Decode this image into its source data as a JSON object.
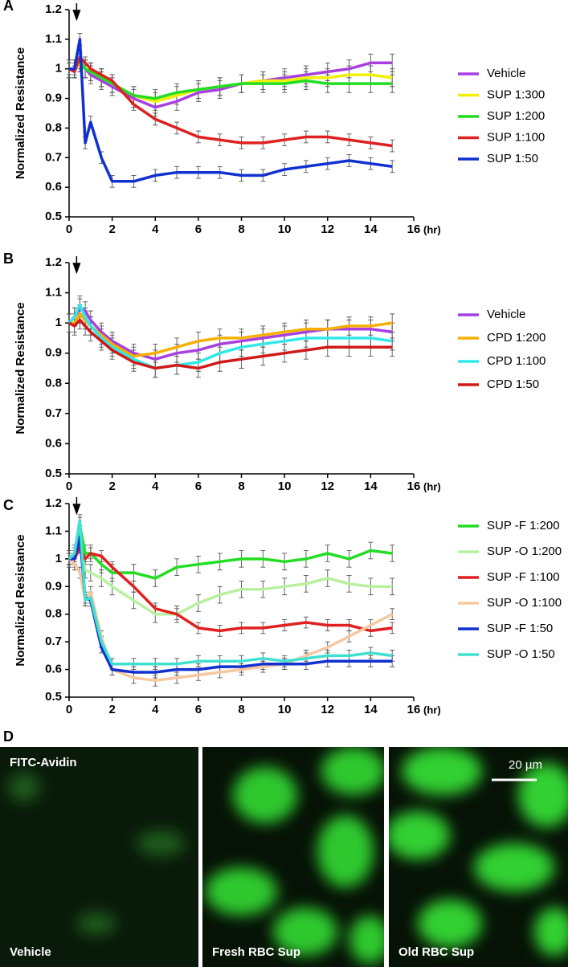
{
  "chart_data": [
    {
      "type": "line",
      "panel": "A",
      "y_label": "Normalized Resistance",
      "x_unit": "(hr)",
      "marker_x": 0.35,
      "x": [
        0,
        0.25,
        0.5,
        0.75,
        1,
        1.5,
        2,
        3,
        4,
        5,
        6,
        7,
        8,
        9,
        10,
        11,
        12,
        13,
        14,
        15
      ],
      "xlim": [
        0,
        16
      ],
      "xticks": [
        0,
        2,
        4,
        6,
        8,
        10,
        12,
        14,
        16
      ],
      "ylim": [
        0.5,
        1.2
      ],
      "yticks": [
        0.5,
        0.6,
        0.7,
        0.8,
        0.9,
        1,
        1.1,
        1.2
      ],
      "series": [
        {
          "name": "Vehicle",
          "color": "#a640e0",
          "error": 0.03,
          "values": [
            1.0,
            1.0,
            1.02,
            1.0,
            0.98,
            0.96,
            0.94,
            0.9,
            0.87,
            0.89,
            0.92,
            0.93,
            0.95,
            0.96,
            0.97,
            0.98,
            0.99,
            1.0,
            1.02,
            1.02
          ]
        },
        {
          "name": "SUP 1:300",
          "color": "#f0f000",
          "error": 0.03,
          "values": [
            1.0,
            1.0,
            1.02,
            1.0,
            0.99,
            0.97,
            0.95,
            0.91,
            0.89,
            0.91,
            0.93,
            0.94,
            0.95,
            0.96,
            0.96,
            0.97,
            0.97,
            0.98,
            0.98,
            0.97
          ]
        },
        {
          "name": "SUP 1:200",
          "color": "#22dd22",
          "error": 0.03,
          "values": [
            1.0,
            1.0,
            1.03,
            1.0,
            0.99,
            0.97,
            0.95,
            0.91,
            0.9,
            0.92,
            0.93,
            0.94,
            0.95,
            0.95,
            0.95,
            0.96,
            0.95,
            0.95,
            0.95,
            0.95
          ]
        },
        {
          "name": "SUP 1:100",
          "color": "#e02020",
          "error": 0.02,
          "values": [
            1.0,
            0.99,
            1.04,
            1.02,
            1.0,
            0.98,
            0.96,
            0.88,
            0.83,
            0.8,
            0.77,
            0.76,
            0.75,
            0.75,
            0.76,
            0.77,
            0.77,
            0.76,
            0.75,
            0.74
          ]
        },
        {
          "name": "SUP 1:50",
          "color": "#1030d0",
          "error": 0.02,
          "values": [
            1.0,
            1.0,
            1.1,
            0.75,
            0.82,
            0.7,
            0.62,
            0.62,
            0.64,
            0.65,
            0.65,
            0.65,
            0.64,
            0.64,
            0.66,
            0.67,
            0.68,
            0.69,
            0.68,
            0.67
          ]
        }
      ]
    },
    {
      "type": "line",
      "panel": "B",
      "y_label": "Normalized Resistance",
      "x_unit": "(hr)",
      "marker_x": 0.35,
      "x": [
        0,
        0.25,
        0.5,
        0.75,
        1,
        1.5,
        2,
        3,
        4,
        5,
        6,
        7,
        8,
        9,
        10,
        11,
        12,
        13,
        14,
        15
      ],
      "xlim": [
        0,
        16
      ],
      "xticks": [
        0,
        2,
        4,
        6,
        8,
        10,
        12,
        14,
        16
      ],
      "ylim": [
        0.5,
        1.2
      ],
      "yticks": [
        0.5,
        0.6,
        0.7,
        0.8,
        0.9,
        1,
        1.1,
        1.2
      ],
      "series": [
        {
          "name": "Vehicle",
          "color": "#a640e0",
          "error": 0.03,
          "values": [
            1.0,
            1.02,
            1.05,
            1.04,
            1.01,
            0.97,
            0.94,
            0.9,
            0.88,
            0.9,
            0.91,
            0.93,
            0.94,
            0.95,
            0.96,
            0.97,
            0.98,
            0.98,
            0.98,
            0.97
          ]
        },
        {
          "name": "CPD 1:200",
          "color": "#f5b000",
          "error": 0.03,
          "values": [
            1.0,
            1.0,
            1.03,
            1.01,
            0.99,
            0.96,
            0.93,
            0.89,
            0.9,
            0.92,
            0.94,
            0.95,
            0.95,
            0.96,
            0.97,
            0.98,
            0.98,
            0.99,
            0.99,
            1.0
          ]
        },
        {
          "name": "CPD 1:100",
          "color": "#30e8e8",
          "error": 0.03,
          "values": [
            1.0,
            1.02,
            1.06,
            1.02,
            0.99,
            0.95,
            0.92,
            0.88,
            0.85,
            0.86,
            0.87,
            0.9,
            0.92,
            0.93,
            0.94,
            0.95,
            0.95,
            0.95,
            0.95,
            0.94
          ]
        },
        {
          "name": "CPD 1:50",
          "color": "#d01818",
          "error": 0.03,
          "values": [
            1.0,
            0.99,
            1.01,
            0.99,
            0.97,
            0.94,
            0.91,
            0.87,
            0.85,
            0.86,
            0.85,
            0.87,
            0.88,
            0.89,
            0.9,
            0.91,
            0.92,
            0.92,
            0.92,
            0.92
          ]
        }
      ]
    },
    {
      "type": "line",
      "panel": "C",
      "y_label": "Normalized Resistance",
      "x_unit": "(hr)",
      "marker_x": 0.35,
      "x": [
        0,
        0.25,
        0.5,
        0.75,
        1,
        1.5,
        2,
        3,
        4,
        5,
        6,
        7,
        8,
        9,
        10,
        11,
        12,
        13,
        14,
        15
      ],
      "xlim": [
        0,
        16
      ],
      "xticks": [
        0,
        2,
        4,
        6,
        8,
        10,
        12,
        14,
        16
      ],
      "ylim": [
        0.5,
        1.2
      ],
      "yticks": [
        0.5,
        0.6,
        0.7,
        0.8,
        0.9,
        1,
        1.1,
        1.2
      ],
      "series": [
        {
          "name": "SUP -F 1:200",
          "color": "#22dd22",
          "error": 0.03,
          "values": [
            1.0,
            1.02,
            1.12,
            1.02,
            1.02,
            0.98,
            0.95,
            0.95,
            0.93,
            0.97,
            0.98,
            0.99,
            1.0,
            1.0,
            0.99,
            1.0,
            1.02,
            1.0,
            1.03,
            1.02
          ]
        },
        {
          "name": "SUP -O 1:200",
          "color": "#b8f0a0",
          "error": 0.03,
          "values": [
            1.0,
            1.0,
            1.05,
            0.96,
            0.95,
            0.93,
            0.9,
            0.85,
            0.8,
            0.8,
            0.84,
            0.87,
            0.89,
            0.89,
            0.9,
            0.91,
            0.93,
            0.91,
            0.9,
            0.9
          ]
        },
        {
          "name": "SUP -F 1:100",
          "color": "#e02020",
          "error": 0.02,
          "values": [
            1.0,
            1.0,
            1.04,
            1.0,
            1.02,
            1.01,
            0.97,
            0.9,
            0.82,
            0.8,
            0.75,
            0.74,
            0.75,
            0.75,
            0.76,
            0.77,
            0.76,
            0.76,
            0.74,
            0.75
          ]
        },
        {
          "name": "SUP -O 1:100",
          "color": "#f5c8a0",
          "error": 0.02,
          "values": [
            1.0,
            0.98,
            0.95,
            0.85,
            0.88,
            0.72,
            0.6,
            0.57,
            0.56,
            0.57,
            0.58,
            0.59,
            0.6,
            0.61,
            0.62,
            0.65,
            0.68,
            0.72,
            0.76,
            0.8
          ]
        },
        {
          "name": "SUP -F 1:50",
          "color": "#1030d0",
          "error": 0.02,
          "values": [
            1.0,
            1.0,
            1.08,
            0.86,
            0.85,
            0.68,
            0.6,
            0.59,
            0.59,
            0.6,
            0.6,
            0.61,
            0.61,
            0.62,
            0.62,
            0.62,
            0.63,
            0.63,
            0.63,
            0.63
          ]
        },
        {
          "name": "SUP -O 1:50",
          "color": "#40e0d0",
          "error": 0.02,
          "values": [
            1.0,
            1.02,
            1.14,
            0.85,
            0.86,
            0.7,
            0.62,
            0.62,
            0.62,
            0.62,
            0.63,
            0.63,
            0.63,
            0.64,
            0.63,
            0.64,
            0.65,
            0.65,
            0.66,
            0.65
          ]
        }
      ]
    }
  ],
  "panel_d": {
    "label": "D",
    "stain": "FITC-Avidin",
    "scale_bar": "20 µm",
    "images": [
      "Vehicle",
      "Fresh RBC Sup",
      "Old RBC Sup"
    ]
  }
}
